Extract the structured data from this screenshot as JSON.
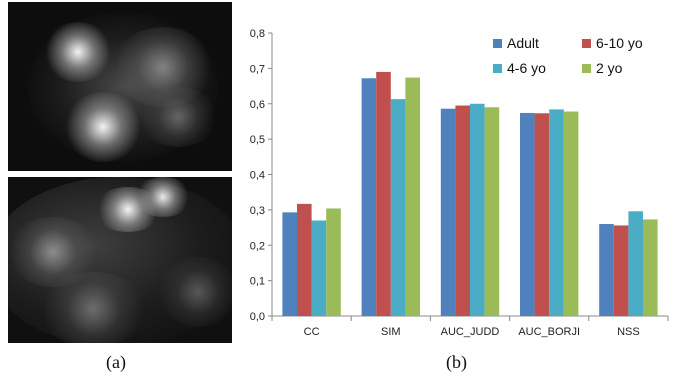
{
  "captions": {
    "a": "(a)",
    "b": "(b)"
  },
  "chart_data": {
    "type": "bar",
    "categories": [
      "CC",
      "SIM",
      "AUC_JUDD",
      "AUC_BORJI",
      "NSS"
    ],
    "series": [
      {
        "name": "Adult",
        "color": "#4F81BD",
        "values": [
          0.293,
          0.672,
          0.586,
          0.574,
          0.26
        ]
      },
      {
        "name": "4-6 yo",
        "color": "#4BACC6",
        "values": [
          0.27,
          0.613,
          0.6,
          0.584,
          0.296
        ]
      },
      {
        "name": "6-10 yo",
        "color": "#C0504D",
        "values": [
          0.317,
          0.69,
          0.595,
          0.573,
          0.256
        ]
      },
      {
        "name": "2 yo",
        "color": "#9BBB59",
        "values": [
          0.304,
          0.674,
          0.59,
          0.578,
          0.273
        ]
      }
    ],
    "bar_order": [
      "Adult",
      "6-10 yo",
      "4-6 yo",
      "2 yo"
    ],
    "ylim": [
      0,
      0.8
    ],
    "yticks": [
      "0,0",
      "0,1",
      "0,2",
      "0,3",
      "0,4",
      "0,5",
      "0,6",
      "0,7",
      "0,8"
    ],
    "title": "",
    "xlabel": "",
    "ylabel": "",
    "grid": false,
    "legend_position": "top-right"
  },
  "images": [
    {
      "name": "saliency-map-top",
      "description_icon": "grayscale-heatmap"
    },
    {
      "name": "saliency-map-bottom",
      "description_icon": "grayscale-heatmap"
    }
  ]
}
